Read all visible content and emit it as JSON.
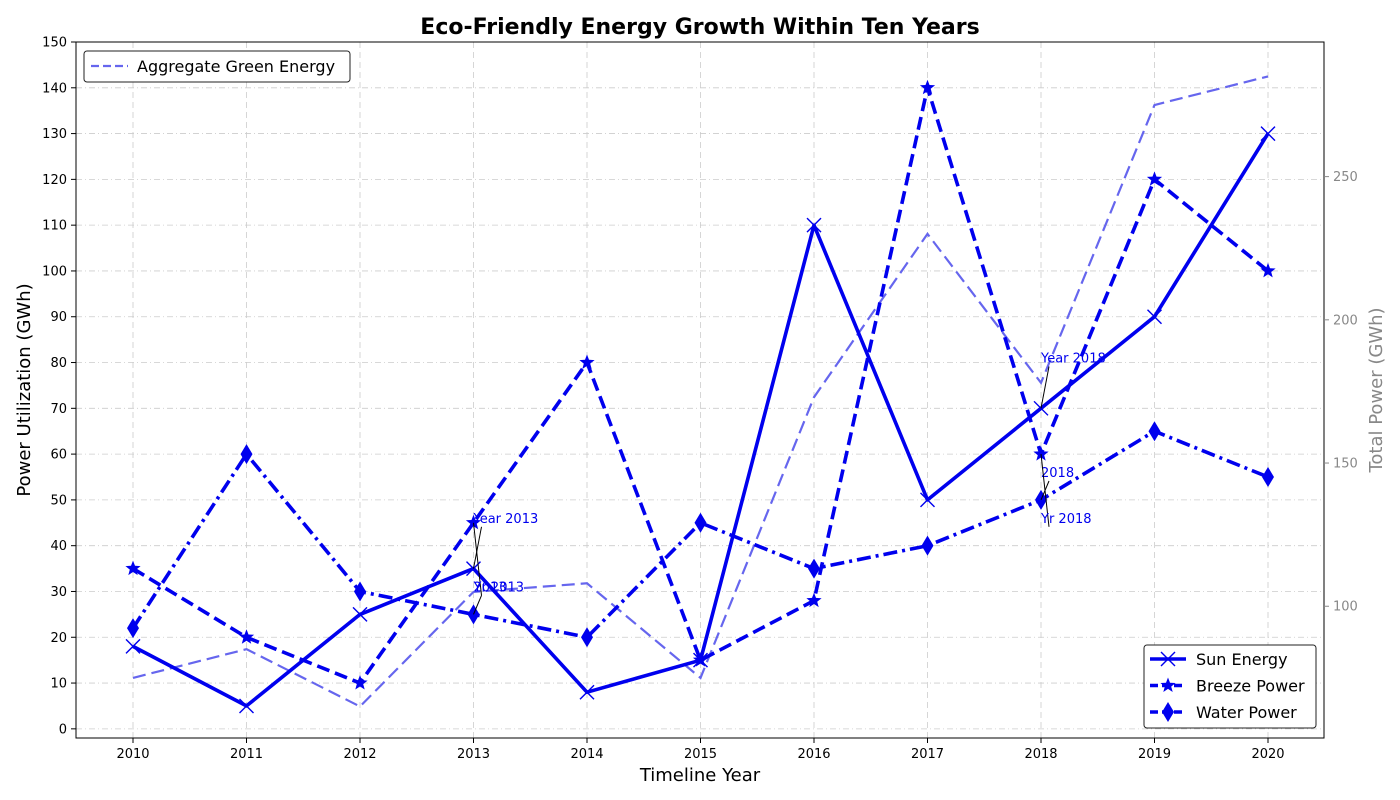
{
  "chart_data": {
    "type": "line",
    "title": "Eco-Friendly Energy Growth Within Ten Years",
    "xlabel": "Timeline Year",
    "ylabel": "Power Utilization (GWh)",
    "y2label": "Total Power (GWh)",
    "x": [
      2010,
      2011,
      2012,
      2013,
      2014,
      2015,
      2016,
      2017,
      2018,
      2019,
      2020
    ],
    "ylim": [
      -2,
      150
    ],
    "yticks": [
      0,
      10,
      20,
      30,
      40,
      50,
      60,
      70,
      80,
      90,
      100,
      110,
      120,
      130,
      140,
      150
    ],
    "y2lim": [
      54,
      297
    ],
    "y2ticks": [
      100,
      150,
      200,
      250
    ],
    "grid": true,
    "series": [
      {
        "name": "Sun Energy",
        "values": [
          18,
          5,
          25,
          35,
          8,
          15,
          110,
          50,
          70,
          90,
          130
        ],
        "color": "#0000ee",
        "dash": "solid",
        "marker": "x",
        "axis": "left"
      },
      {
        "name": "Breeze Power",
        "values": [
          35,
          20,
          10,
          45,
          80,
          15,
          28,
          140,
          60,
          120,
          100
        ],
        "color": "#0000ee",
        "dash": "dashed",
        "marker": "star",
        "axis": "left"
      },
      {
        "name": "Water Power",
        "values": [
          22,
          60,
          30,
          25,
          20,
          45,
          35,
          40,
          50,
          65,
          55
        ],
        "color": "#0000ee",
        "dash": "dashdot",
        "marker": "diamond",
        "axis": "left"
      },
      {
        "name": "Aggregate Green Energy",
        "values": [
          75,
          85,
          65,
          105,
          108,
          75,
          173,
          230,
          178,
          275,
          285
        ],
        "color": "#6666ee",
        "dash": "dashed",
        "marker": "none",
        "axis": "right"
      }
    ],
    "legend_main": {
      "placement": "bottom-right",
      "entries": [
        "Sun Energy",
        "Breeze Power",
        "Water Power"
      ]
    },
    "legend_secondary": {
      "placement": "top-left",
      "entries": [
        "Aggregate Green Energy"
      ]
    },
    "annotations": [
      {
        "text": "Year 2013",
        "x": 2013,
        "y": 35,
        "tx": 2013,
        "ty": 45
      },
      {
        "text": "2013",
        "x": 2013,
        "y": 25,
        "tx": 2013,
        "ty": 30
      },
      {
        "text": "Yr 2013",
        "x": 2013,
        "y": 45,
        "tx": 2013,
        "ty": 30
      },
      {
        "text": "Year 2018",
        "x": 2018,
        "y": 70,
        "tx": 2018,
        "ty": 80
      },
      {
        "text": "2018",
        "x": 2018,
        "y": 50,
        "tx": 2018,
        "ty": 55
      },
      {
        "text": "Yr 2018",
        "x": 2018,
        "y": 60,
        "tx": 2018,
        "ty": 45
      }
    ]
  }
}
